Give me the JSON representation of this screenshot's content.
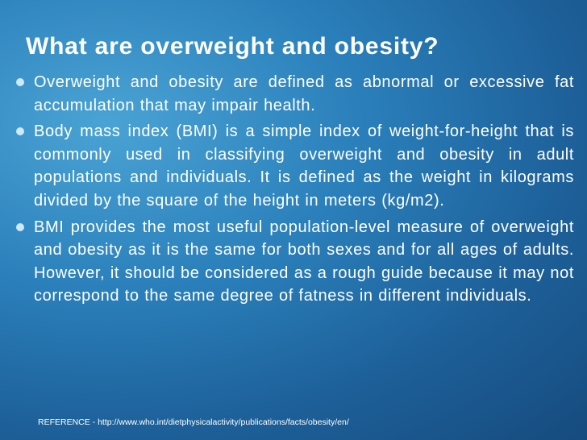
{
  "slide": {
    "title": "What are overweight and obesity?",
    "bullets": [
      "Overweight and obesity are defined as abnormal or excessive fat accumulation that may impair health.",
      "Body mass index (BMI) is a simple index of weight-for-height that is commonly used in classifying overweight and obesity in adult populations and individuals. It is defined as the weight in kilograms divided by the square of the height in meters (kg/m2).",
      "BMI provides the most useful population-level measure of overweight and obesity as it is the same for both sexes and for all ages of adults. However, it should be considered as a rough guide because it may not correspond to the same degree of fatness in different individuals."
    ],
    "reference": "REFERENCE - http://www.who.int/dietphysicalactivity/publications/facts/obesity/en/"
  }
}
